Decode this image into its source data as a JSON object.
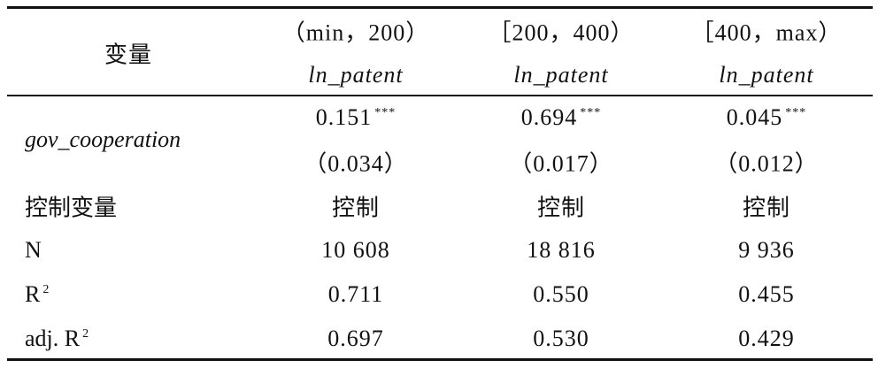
{
  "table": {
    "header_label": "变量",
    "columns": [
      {
        "range": "（min，200）",
        "dependent": "ln_patent"
      },
      {
        "range": "［200，400）",
        "dependent": "ln_patent"
      },
      {
        "range": "［400，max）",
        "dependent": "ln_patent"
      }
    ],
    "coefficient_row": {
      "label": "gov_cooperation",
      "estimates": [
        {
          "coef": "0.151",
          "stars": "***",
          "se": "（0.034）"
        },
        {
          "coef": "0.694",
          "stars": "***",
          "se": "（0.017）"
        },
        {
          "coef": "0.045",
          "stars": "***",
          "se": "（0.012）"
        }
      ]
    },
    "rows": [
      {
        "label": "控制变量",
        "values": [
          "控制",
          "控制",
          "控制"
        ]
      },
      {
        "label": "N",
        "values": [
          "10 608",
          "18 816",
          "9 936"
        ]
      },
      {
        "label": "R",
        "label_sup": "2",
        "values": [
          "0.711",
          "0.550",
          "0.455"
        ]
      },
      {
        "label": "adj. R",
        "label_sup": "2",
        "values": [
          "0.697",
          "0.530",
          "0.429"
        ]
      }
    ]
  }
}
